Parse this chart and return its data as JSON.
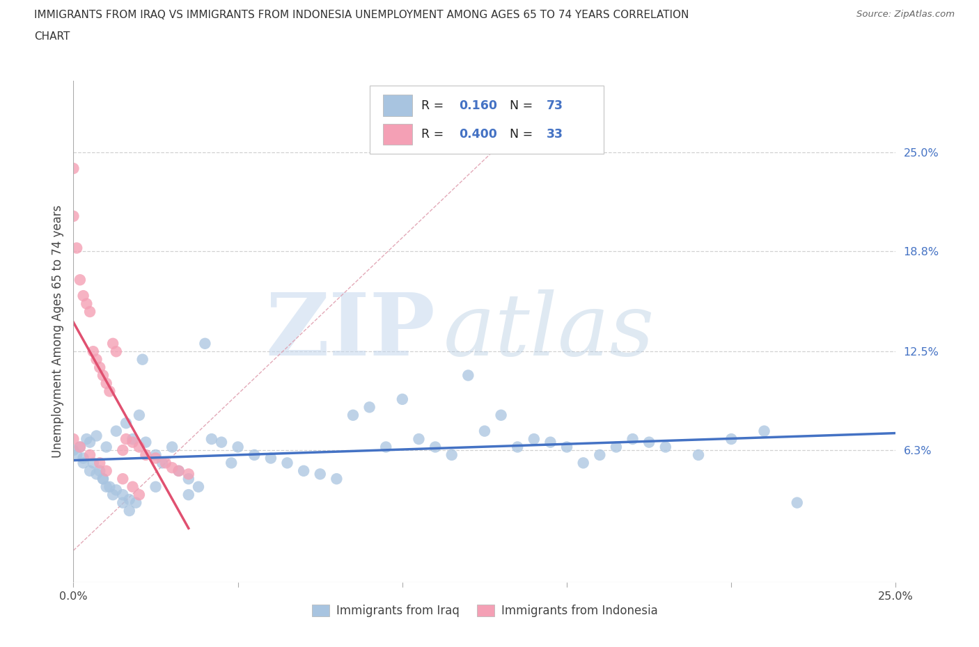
{
  "title_line1": "IMMIGRANTS FROM IRAQ VS IMMIGRANTS FROM INDONESIA UNEMPLOYMENT AMONG AGES 65 TO 74 YEARS CORRELATION",
  "title_line2": "CHART",
  "source": "Source: ZipAtlas.com",
  "ylabel": "Unemployment Among Ages 65 to 74 years",
  "iraq_color": "#a8c4e0",
  "indonesia_color": "#f4a0b5",
  "iraq_R": 0.16,
  "iraq_N": 73,
  "indonesia_R": 0.4,
  "indonesia_N": 33,
  "legend_iraq_label": "Immigrants from Iraq",
  "legend_indonesia_label": "Immigrants from Indonesia",
  "iraq_line_color": "#4472c4",
  "indonesia_line_color": "#e05070",
  "watermark_zip": "ZIP",
  "watermark_atlas": "atlas",
  "right_ytick_labels": [
    "25.0%",
    "18.8%",
    "12.5%",
    "6.3%"
  ],
  "right_ytick_vals": [
    0.25,
    0.188,
    0.125,
    0.063
  ],
  "xlim": [
    0.0,
    0.25
  ],
  "ylim": [
    -0.02,
    0.295
  ],
  "background_color": "#ffffff",
  "grid_color": "#cccccc",
  "diag_color": "#e0a0b0",
  "iraq_scatter_x": [
    0.0,
    0.001,
    0.002,
    0.003,
    0.004,
    0.005,
    0.006,
    0.007,
    0.008,
    0.009,
    0.01,
    0.01,
    0.012,
    0.013,
    0.015,
    0.016,
    0.017,
    0.018,
    0.02,
    0.021,
    0.022,
    0.025,
    0.027,
    0.03,
    0.032,
    0.035,
    0.038,
    0.04,
    0.042,
    0.045,
    0.048,
    0.05,
    0.055,
    0.06,
    0.065,
    0.07,
    0.075,
    0.08,
    0.085,
    0.09,
    0.095,
    0.1,
    0.105,
    0.11,
    0.115,
    0.12,
    0.125,
    0.13,
    0.135,
    0.14,
    0.145,
    0.15,
    0.155,
    0.16,
    0.165,
    0.17,
    0.175,
    0.18,
    0.19,
    0.2,
    0.21,
    0.22,
    0.003,
    0.005,
    0.007,
    0.009,
    0.011,
    0.013,
    0.015,
    0.017,
    0.019,
    0.025,
    0.035
  ],
  "iraq_scatter_y": [
    0.063,
    0.06,
    0.065,
    0.058,
    0.07,
    0.068,
    0.055,
    0.072,
    0.05,
    0.045,
    0.04,
    0.065,
    0.035,
    0.075,
    0.03,
    0.08,
    0.025,
    0.07,
    0.085,
    0.12,
    0.068,
    0.06,
    0.055,
    0.065,
    0.05,
    0.045,
    0.04,
    0.13,
    0.07,
    0.068,
    0.055,
    0.065,
    0.06,
    0.058,
    0.055,
    0.05,
    0.048,
    0.045,
    0.085,
    0.09,
    0.065,
    0.095,
    0.07,
    0.065,
    0.06,
    0.11,
    0.075,
    0.085,
    0.065,
    0.07,
    0.068,
    0.065,
    0.055,
    0.06,
    0.065,
    0.07,
    0.068,
    0.065,
    0.06,
    0.07,
    0.075,
    0.03,
    0.055,
    0.05,
    0.048,
    0.045,
    0.04,
    0.038,
    0.035,
    0.032,
    0.03,
    0.04,
    0.035
  ],
  "indonesia_scatter_x": [
    0.0,
    0.0,
    0.001,
    0.002,
    0.003,
    0.004,
    0.005,
    0.006,
    0.007,
    0.008,
    0.009,
    0.01,
    0.011,
    0.012,
    0.013,
    0.015,
    0.016,
    0.018,
    0.02,
    0.022,
    0.025,
    0.028,
    0.03,
    0.032,
    0.035,
    0.0,
    0.002,
    0.005,
    0.008,
    0.01,
    0.015,
    0.018,
    0.02
  ],
  "indonesia_scatter_y": [
    0.24,
    0.21,
    0.19,
    0.17,
    0.16,
    0.155,
    0.15,
    0.125,
    0.12,
    0.115,
    0.11,
    0.105,
    0.1,
    0.13,
    0.125,
    0.063,
    0.07,
    0.068,
    0.065,
    0.06,
    0.058,
    0.055,
    0.052,
    0.05,
    0.048,
    0.07,
    0.065,
    0.06,
    0.055,
    0.05,
    0.045,
    0.04,
    0.035
  ]
}
